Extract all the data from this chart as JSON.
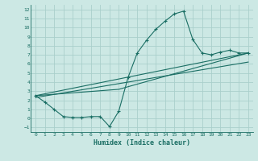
{
  "title": "",
  "xlabel": "Humidex (Indice chaleur)",
  "bg_color": "#cce8e4",
  "grid_color": "#aacfcb",
  "line_color": "#1a6e64",
  "xlim": [
    -0.5,
    23.5
  ],
  "ylim": [
    -1.5,
    12.5
  ],
  "xticks": [
    0,
    1,
    2,
    3,
    4,
    5,
    6,
    7,
    8,
    9,
    10,
    11,
    12,
    13,
    14,
    15,
    16,
    17,
    18,
    19,
    20,
    21,
    22,
    23
  ],
  "yticks": [
    -1,
    0,
    1,
    2,
    3,
    4,
    5,
    6,
    7,
    8,
    9,
    10,
    11,
    12
  ],
  "line1_x": [
    0,
    1,
    2,
    3,
    4,
    5,
    6,
    7,
    8,
    9,
    10,
    11,
    12,
    13,
    14,
    15,
    16,
    17,
    18,
    19,
    20,
    21,
    22,
    23
  ],
  "line1_y": [
    2.5,
    1.8,
    1.0,
    0.2,
    0.1,
    0.1,
    0.2,
    0.2,
    -0.9,
    0.8,
    4.5,
    7.2,
    8.6,
    9.8,
    10.7,
    11.5,
    11.8,
    8.7,
    7.2,
    7.0,
    7.3,
    7.5,
    7.2,
    7.2
  ],
  "line2_x": [
    0,
    23
  ],
  "line2_y": [
    2.5,
    7.2
  ],
  "line3_x": [
    0,
    23
  ],
  "line3_y": [
    2.3,
    6.2
  ],
  "line4_x": [
    0,
    9,
    23
  ],
  "line4_y": [
    2.5,
    3.2,
    7.2
  ]
}
